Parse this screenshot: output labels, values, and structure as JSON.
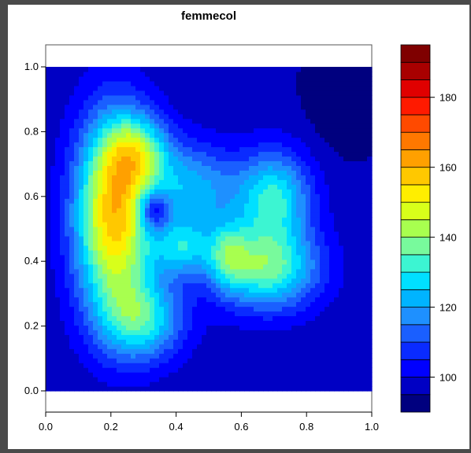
{
  "chart_data": {
    "type": "heatmap",
    "title": "femmecol",
    "xlabel": "",
    "ylabel": "",
    "xlim": [
      0,
      1
    ],
    "ylim": [
      0,
      1
    ],
    "x_ticks": [
      "0.0",
      "0.2",
      "0.4",
      "0.6",
      "0.8",
      "1.0"
    ],
    "y_ticks": [
      "0.0",
      "0.2",
      "0.4",
      "0.6",
      "0.8",
      "1.0"
    ],
    "colorbar": {
      "levels": [
        90,
        95,
        100,
        105,
        110,
        115,
        120,
        125,
        130,
        135,
        140,
        145,
        150,
        155,
        160,
        165,
        170,
        175,
        180,
        185,
        190,
        195
      ],
      "tick_values": [
        100,
        120,
        140,
        160,
        180
      ],
      "tick_labels": [
        "100",
        "120",
        "140",
        "160",
        "180"
      ],
      "colors": [
        "#00007f",
        "#0000c4",
        "#0000ff",
        "#0a2bff",
        "#1a5fff",
        "#1e90ff",
        "#00b4ff",
        "#00e0ff",
        "#3cf5d2",
        "#78fa9c",
        "#a8ff4f",
        "#d8ff1a",
        "#ffee00",
        "#ffc800",
        "#ffa000",
        "#ff7800",
        "#ff4a00",
        "#ff1a00",
        "#e00000",
        "#a80000",
        "#7f0000"
      ]
    },
    "field": {
      "base": 96,
      "components": [
        {
          "x": 0.21,
          "y": 0.54,
          "amp": 62,
          "sx": 0.085,
          "sy": 0.21
        },
        {
          "x": 0.28,
          "y": 0.74,
          "amp": 28,
          "sx": 0.07,
          "sy": 0.08
        },
        {
          "x": 0.33,
          "y": 0.56,
          "amp": -26,
          "sx": 0.035,
          "sy": 0.045
        },
        {
          "x": 0.42,
          "y": 0.44,
          "amp": 24,
          "sx": 0.06,
          "sy": 0.06
        },
        {
          "x": 0.56,
          "y": 0.42,
          "amp": 22,
          "sx": 0.045,
          "sy": 0.07
        },
        {
          "x": 0.68,
          "y": 0.38,
          "amp": 40,
          "sx": 0.11,
          "sy": 0.09
        },
        {
          "x": 0.7,
          "y": 0.6,
          "amp": 34,
          "sx": 0.08,
          "sy": 0.1
        },
        {
          "x": 0.45,
          "y": 0.62,
          "amp": 26,
          "sx": 0.1,
          "sy": 0.1
        },
        {
          "x": 0.3,
          "y": 0.22,
          "amp": 30,
          "sx": 0.09,
          "sy": 0.09
        },
        {
          "x": 0.92,
          "y": 0.92,
          "amp": -6,
          "sx": 0.08,
          "sy": 0.12
        }
      ]
    }
  }
}
